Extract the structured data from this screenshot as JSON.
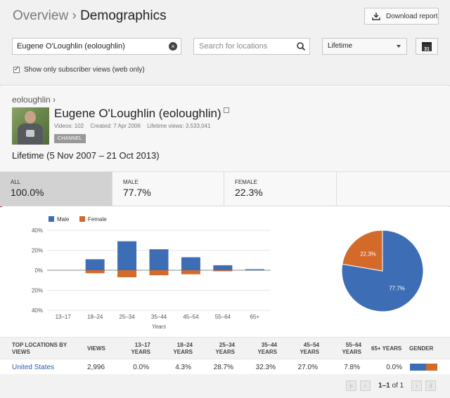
{
  "header": {
    "breadcrumb_parent": "Overview",
    "breadcrumb_sep": "›",
    "breadcrumb_current": "Demographics",
    "download_label": "Download report"
  },
  "filters": {
    "channel_value": "Eugene O'Loughlin (eoloughlin)",
    "location_placeholder": "Search for locations",
    "period_value": "Lifetime",
    "calendar_day": "31",
    "subscriber_only_label": "Show only subscriber views (web only)",
    "subscriber_only_checked": true
  },
  "channel": {
    "crumb": "eoloughlin ›",
    "title": "Eugene O'Loughlin (eoloughlin)",
    "videos": "Videos: 102",
    "created": "Created: 7 Apr 2006",
    "lifetime_views": "Lifetime views: 3,533,041",
    "badge": "CHANNEL",
    "range": "Lifetime (5 Nov 2007 – 21 Oct 2013)"
  },
  "tabs": [
    {
      "label": "ALL",
      "value": "100.0%",
      "selected": true
    },
    {
      "label": "MALE",
      "value": "77.7%",
      "selected": false
    },
    {
      "label": "FEMALE",
      "value": "22.3%",
      "selected": false
    }
  ],
  "colors": {
    "male": "#3d6eb5",
    "female": "#d36a2a"
  },
  "chart_data": [
    {
      "type": "bar",
      "categories": [
        "13–17",
        "18–24",
        "25–34",
        "35–44",
        "45–54",
        "55–64",
        "65+"
      ],
      "series": [
        {
          "name": "Male",
          "values": [
            0,
            11,
            29,
            21,
            13,
            5,
            1
          ]
        },
        {
          "name": "Female",
          "values": [
            0,
            -3,
            -7,
            -5,
            -4,
            -1,
            0
          ]
        }
      ],
      "yticks": [
        "40%",
        "20%",
        "0%",
        "20%",
        "40%"
      ],
      "ylim": [
        -40,
        40
      ],
      "xlabel": "Years",
      "legend": "top-left"
    },
    {
      "type": "pie",
      "labels": [
        "Male",
        "Female"
      ],
      "values": [
        77.7,
        22.3
      ],
      "value_labels": [
        "77.7%",
        "22.3%"
      ]
    }
  ],
  "table": {
    "headers": [
      "TOP LOCATIONS BY VIEWS",
      "VIEWS",
      "13–17 YEARS",
      "18–24 YEARS",
      "25–34 YEARS",
      "35–44 YEARS",
      "45–54 YEARS",
      "55–64 YEARS",
      "65+ YEARS",
      "GENDER"
    ],
    "rows": [
      {
        "location": "United States",
        "views": "2,996",
        "a13": "0.0%",
        "a18": "4.3%",
        "a25": "28.7%",
        "a35": "32.3%",
        "a45": "27.0%",
        "a55": "7.8%",
        "a65": "0.0%",
        "male_share": 0.6
      }
    ]
  },
  "pager": {
    "range": "1–1",
    "of": "of 1"
  }
}
